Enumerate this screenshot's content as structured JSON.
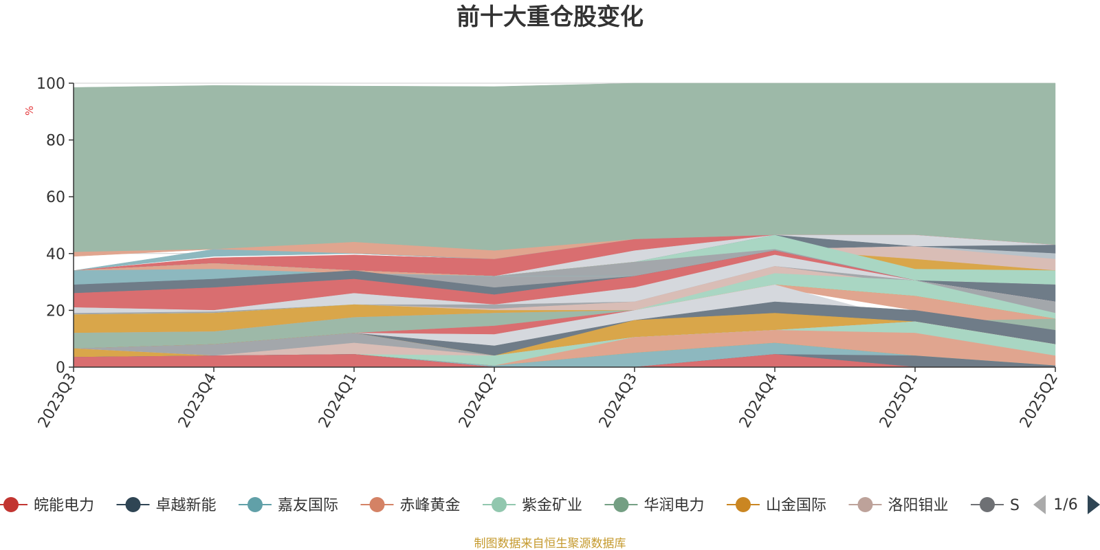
{
  "chart_data": {
    "type": "area",
    "title": "前十大重仓股变化",
    "ylabel": "%",
    "ylim": [
      0,
      100
    ],
    "yticks": [
      "0",
      "20",
      "40",
      "60",
      "80",
      "100"
    ],
    "categories": [
      "2023Q3",
      "2023Q4",
      "2024Q1",
      "2024Q2",
      "2024Q3",
      "2024Q4",
      "2025Q1",
      "2025Q2"
    ],
    "grid": true,
    "legend_position": "bottom",
    "legend_page": "1/6",
    "source_note": "制图数据来自恒生聚源数据库",
    "legend": [
      {
        "name": "皖能电力",
        "color": "#c23531"
      },
      {
        "name": "卓越新能",
        "color": "#2f4554"
      },
      {
        "name": "嘉友国际",
        "color": "#61a0a8"
      },
      {
        "name": "赤峰黄金",
        "color": "#d48265"
      },
      {
        "name": "紫金矿业",
        "color": "#91c7ae"
      },
      {
        "name": "华润电力",
        "color": "#749f83"
      },
      {
        "name": "山金国际",
        "color": "#ca8622"
      },
      {
        "name": "洛阳钼业",
        "color": "#bda29a"
      },
      {
        "name": "S",
        "color": "#6e7074"
      }
    ],
    "layers": [
      {
        "color": "#9db9a8",
        "bottom": [
          40.5,
          41.5,
          44,
          41,
          45,
          46.5,
          46.5,
          43
        ],
        "top": [
          98.5,
          99.2,
          99,
          98.8,
          100,
          100,
          100,
          100
        ]
      },
      {
        "color": "#e0a58f",
        "bottom": [
          39,
          41.5,
          40,
          38,
          45,
          46.5,
          46.5,
          43
        ],
        "top": [
          40.5,
          41.5,
          44,
          41,
          45,
          46.5,
          46.5,
          43
        ]
      },
      {
        "color": "#8db8bf",
        "bottom": [
          34,
          39,
          40,
          38,
          45,
          46.5,
          46.5,
          43
        ],
        "top": [
          34,
          41.5,
          40,
          38,
          45,
          46.5,
          46.5,
          43
        ]
      },
      {
        "color": "#d96e70",
        "bottom": [
          34,
          36.5,
          34,
          32,
          41,
          46.5,
          46.5,
          43
        ],
        "top": [
          34,
          38.5,
          39.5,
          38,
          45,
          46.5,
          46.5,
          43
        ]
      },
      {
        "color": "#d5d8dd",
        "bottom": [
          34,
          36.5,
          34,
          32,
          37,
          41.5,
          42.5,
          40
        ],
        "top": [
          34,
          36.5,
          34,
          32,
          41,
          46.5,
          46.5,
          43
        ]
      },
      {
        "color": "#6f7c88",
        "bottom": [
          34,
          36.5,
          34,
          32,
          37,
          41.5,
          42.5,
          40
        ],
        "top": [
          34,
          36.5,
          34,
          32,
          37,
          46.5,
          42.5,
          43
        ]
      },
      {
        "color": "#b8c2c9",
        "bottom": [
          34,
          36.5,
          34,
          32,
          37,
          41.5,
          42.5,
          38
        ],
        "top": [
          34,
          36.5,
          34,
          32,
          37,
          41.5,
          42.5,
          40
        ]
      },
      {
        "color": "#d9bdb6",
        "bottom": [
          34,
          36.5,
          34,
          32,
          37,
          41.5,
          38,
          34
        ],
        "top": [
          34,
          36.5,
          34,
          32,
          37,
          41.5,
          42.5,
          38
        ]
      },
      {
        "color": "#d9a64a",
        "bottom": [
          34,
          36.5,
          34,
          32,
          37,
          41.5,
          34.5,
          34
        ],
        "top": [
          34,
          36.5,
          34,
          32,
          37,
          41.5,
          38,
          34
        ]
      },
      {
        "color": "#a9d6c3",
        "bottom": [
          34,
          36.5,
          34,
          32,
          37,
          41.5,
          30.5,
          29
        ],
        "top": [
          34,
          36.5,
          34,
          32,
          37,
          46.5,
          34.5,
          34
        ]
      },
      {
        "color": "#a3a7ab",
        "bottom": [
          34,
          36.5,
          34,
          28,
          32,
          41,
          30.5,
          29
        ],
        "top": [
          34,
          36.5,
          34,
          32,
          37,
          41.5,
          30.5,
          29
        ]
      },
      {
        "color": "#e0a58f",
        "bottom": [
          30,
          34.5,
          33,
          32,
          32,
          41,
          30.5,
          29
        ],
        "top": [
          34,
          36.5,
          34,
          32,
          32,
          41,
          30.5,
          29
        ]
      },
      {
        "color": "#8db8bf",
        "bottom": [
          29,
          31,
          33,
          32,
          32,
          41,
          30.5,
          29
        ],
        "top": [
          34,
          34.5,
          33,
          32,
          32,
          41,
          30.5,
          29
        ]
      },
      {
        "color": "#6f7c88",
        "bottom": [
          26,
          28,
          31,
          25.5,
          32,
          41,
          30.5,
          23
        ],
        "top": [
          29,
          31,
          34,
          28,
          32,
          41,
          30.5,
          29
        ]
      },
      {
        "color": "#d96e70",
        "bottom": [
          21,
          20,
          26,
          22,
          28,
          39.5,
          30.5,
          23
        ],
        "top": [
          26,
          28,
          31,
          25.5,
          32,
          41,
          30.5,
          23
        ]
      },
      {
        "color": "#d5d8dd",
        "bottom": [
          19,
          19.5,
          22,
          22,
          23,
          35.5,
          30.5,
          23
        ],
        "top": [
          21,
          20,
          26,
          22,
          28,
          39.5,
          30.5,
          23
        ]
      },
      {
        "color": "#a3a7ab",
        "bottom": [
          18.5,
          19,
          22,
          20.5,
          20,
          33,
          29,
          19
        ],
        "top": [
          19,
          19.5,
          22,
          22,
          23,
          35.5,
          30.5,
          23
        ]
      },
      {
        "color": "#d9bdb6",
        "bottom": [
          18.5,
          19,
          22,
          20,
          20,
          32,
          29,
          17
        ],
        "top": [
          18.5,
          19,
          22,
          20.5,
          23,
          35.5,
          29,
          19
        ]
      },
      {
        "color": "#a9d6c3",
        "bottom": [
          18.5,
          19,
          22,
          20,
          20,
          29,
          25,
          17
        ],
        "top": [
          18.5,
          19,
          22,
          20,
          20,
          33,
          30.5,
          19
        ]
      },
      {
        "color": "#d9a64a",
        "bottom": [
          12,
          12.5,
          17.5,
          19,
          20,
          29,
          25,
          17
        ],
        "top": [
          18.5,
          19,
          22,
          20,
          20,
          29,
          25,
          17
        ]
      },
      {
        "color": "#e0a58f",
        "bottom": [
          12,
          12.5,
          17.5,
          19,
          20,
          28,
          20,
          13
        ],
        "top": [
          12,
          12.5,
          17.5,
          19,
          20,
          29,
          25,
          17
        ]
      },
      {
        "color": "#9db9a8",
        "bottom": [
          6.5,
          8,
          12,
          14.5,
          20,
          23,
          16,
          8
        ],
        "top": [
          12,
          12.5,
          17.5,
          19,
          20,
          23,
          16,
          17
        ]
      },
      {
        "color": "#d96e70",
        "bottom": [
          6.5,
          8,
          12,
          11.5,
          20,
          23,
          16,
          8
        ],
        "top": [
          6.5,
          8,
          12,
          14.5,
          20,
          23,
          16,
          8
        ]
      },
      {
        "color": "#d5d8dd",
        "bottom": [
          6.5,
          8,
          12,
          7.5,
          16.5,
          19,
          16,
          8
        ],
        "top": [
          6.5,
          8,
          12,
          11.5,
          20,
          29,
          16,
          8
        ]
      },
      {
        "color": "#6f7c88",
        "bottom": [
          6.5,
          8,
          12,
          4,
          16.5,
          19,
          16,
          8
        ],
        "top": [
          6.5,
          8,
          12,
          7.5,
          16.5,
          23,
          20,
          13
        ]
      },
      {
        "color": "#d9a64a",
        "bottom": [
          6.5,
          8,
          12,
          4,
          10.5,
          13,
          16,
          8
        ],
        "top": [
          6.5,
          8,
          12,
          4,
          16.5,
          19,
          16,
          8
        ]
      },
      {
        "color": "#a3a7ab",
        "bottom": [
          6.5,
          4,
          8.5,
          4,
          10.5,
          13,
          16,
          8
        ],
        "top": [
          6.5,
          8,
          12,
          4,
          10.5,
          13,
          16,
          8
        ]
      },
      {
        "color": "#d9bdb6",
        "bottom": [
          6.5,
          4,
          4.5,
          4,
          10.5,
          13,
          16,
          8
        ],
        "top": [
          6.5,
          4,
          8.5,
          4,
          10.5,
          13,
          16,
          8
        ]
      },
      {
        "color": "#a9d6c3",
        "bottom": [
          6.5,
          4,
          4.5,
          0.5,
          10.5,
          13,
          12,
          4
        ],
        "top": [
          6.5,
          4,
          4.5,
          4,
          10.5,
          13,
          16,
          8
        ]
      },
      {
        "color": "#e0a58f",
        "bottom": [
          6.5,
          4,
          4.5,
          0.5,
          5,
          8.5,
          4,
          0.5
        ],
        "top": [
          6.5,
          4,
          4.5,
          0.5,
          10.5,
          13,
          12,
          4
        ]
      },
      {
        "color": "#d9a64a",
        "bottom": [
          3.5,
          4,
          4.5,
          0.5,
          5,
          8.5,
          4,
          0.5
        ],
        "top": [
          6.5,
          4,
          4.5,
          0.5,
          5,
          8.5,
          4,
          0.5
        ]
      },
      {
        "color": "#8db8bf",
        "bottom": [
          3.5,
          4,
          4.5,
          0,
          0,
          4.5,
          4,
          0.5
        ],
        "top": [
          3.5,
          4,
          4.5,
          0.5,
          5,
          8.5,
          4,
          0.5
        ]
      },
      {
        "color": "#6f7c88",
        "bottom": [
          3.5,
          4,
          4.5,
          0,
          0,
          4.5,
          0,
          0
        ],
        "top": [
          3.5,
          4,
          4.5,
          0,
          0,
          4.5,
          4,
          0.5
        ]
      },
      {
        "color": "#d96e70",
        "bottom": [
          0,
          0,
          0,
          0,
          0,
          0,
          0,
          0
        ],
        "top": [
          3.5,
          4,
          4.5,
          0,
          0,
          4.5,
          0,
          0
        ]
      }
    ]
  }
}
